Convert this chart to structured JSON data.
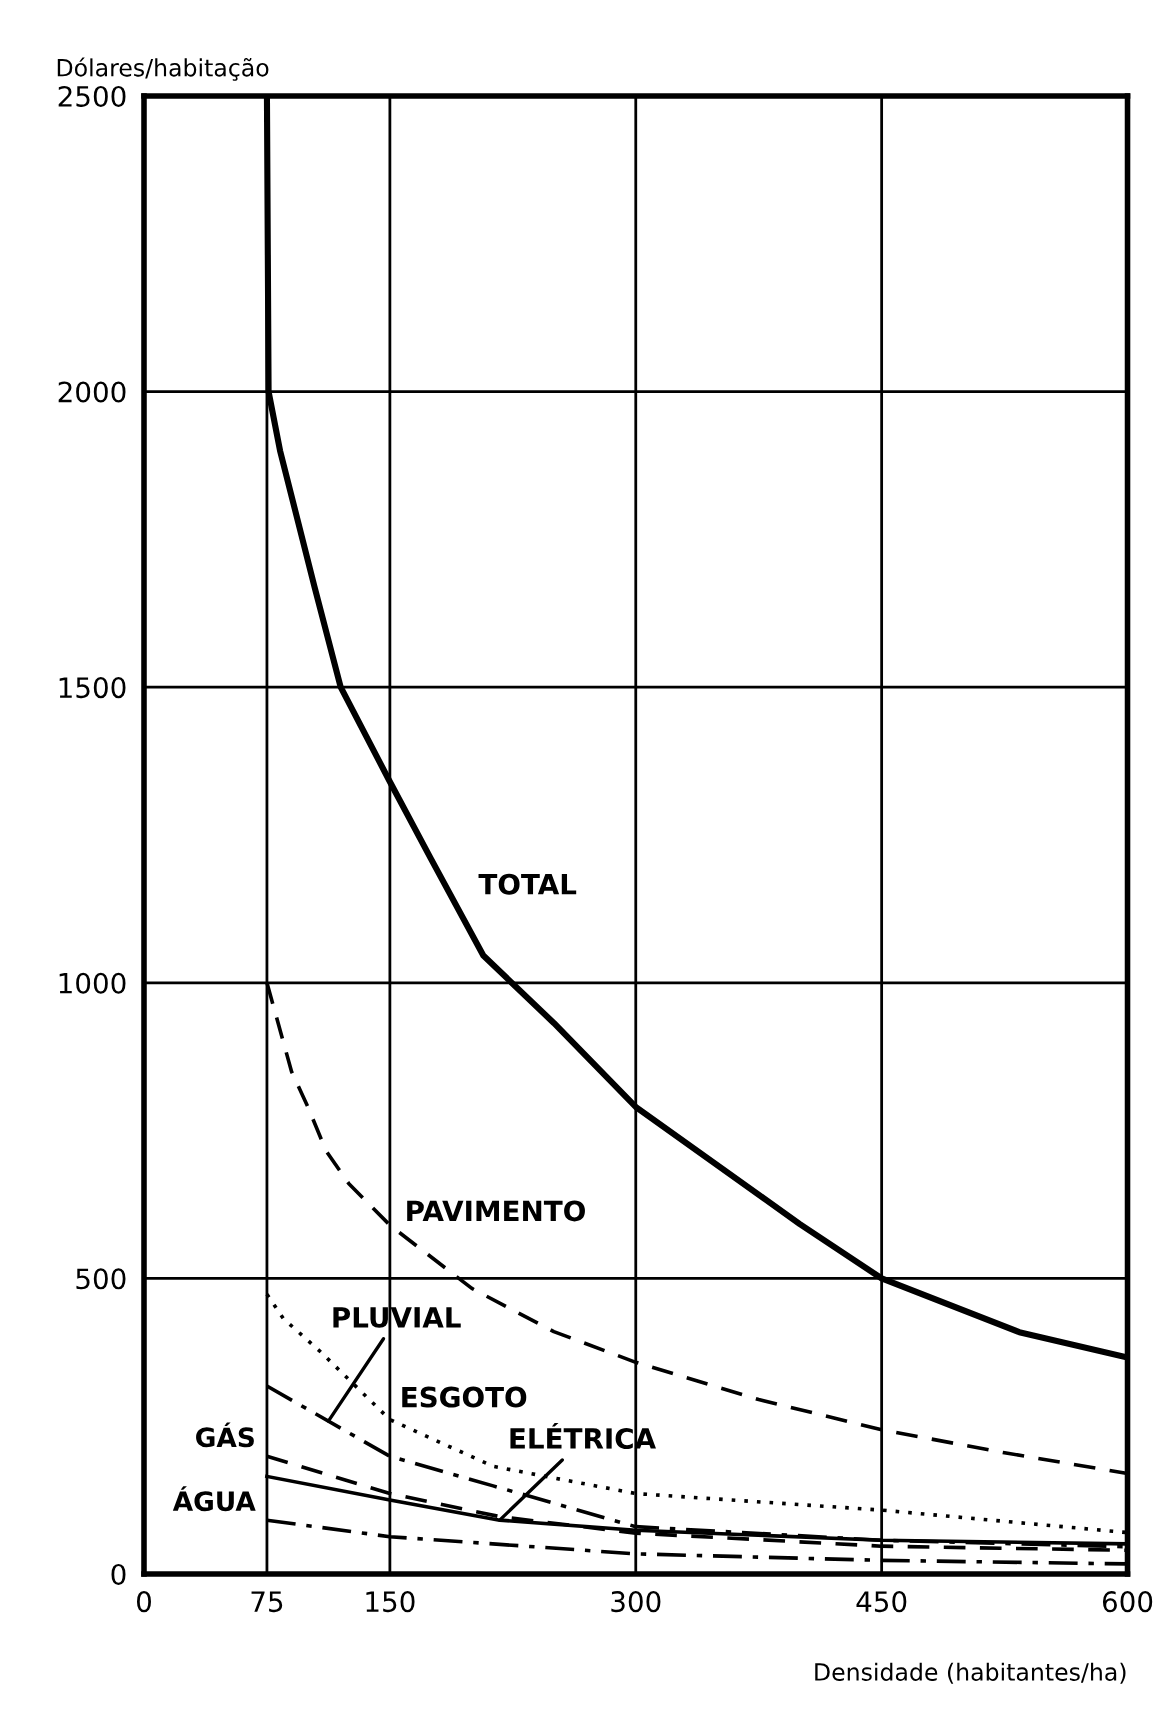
{
  "chart_data": {
    "type": "line",
    "ylabel": "Dólares/habitação",
    "xlabel": "Densidade (habitantes/ha)",
    "xlim": [
      0,
      600
    ],
    "xticks": [
      0,
      75,
      150,
      300,
      450,
      600
    ],
    "ylim": [
      0,
      2500
    ],
    "yticks": [
      0,
      500,
      1000,
      1500,
      2000,
      2500
    ],
    "grid": true,
    "legend": false,
    "series": [
      {
        "name": "TOTAL",
        "color": "#000000",
        "line_style": "solid",
        "x": [
          75,
          76,
          83,
          104,
          120,
          150,
          175,
          207,
          250,
          300,
          400,
          450,
          534,
          600
        ],
        "values": [
          2500,
          2000,
          1900,
          1670,
          1500,
          1340,
          1210,
          1046,
          932,
          790,
          592,
          500,
          409,
          366
        ]
      },
      {
        "name": "PAVIMENTO",
        "color": "#000000",
        "line_style": "dashed",
        "x": [
          75,
          90,
          100,
          111,
          125,
          150,
          200,
          250,
          300,
          375,
          450,
          525,
          600
        ],
        "values": [
          1000,
          850,
          790,
          716,
          660,
          590,
          483,
          410,
          358,
          295,
          244,
          205,
          170
        ]
      },
      {
        "name": "ESGOTO",
        "color": "#000000",
        "line_style": "dotted",
        "x": [
          75,
          85,
          108,
          150,
          213,
          300,
          450,
          600
        ],
        "values": [
          473,
          432,
          375,
          261,
          182,
          136,
          108,
          70
        ]
      },
      {
        "name": "PLUVIAL",
        "color": "#000000",
        "line_style": "dashdot",
        "x": [
          75,
          150,
          213,
          300,
          450,
          600
        ],
        "values": [
          318,
          199,
          149,
          80,
          57,
          46
        ]
      },
      {
        "name": "GÁS",
        "color": "#000000",
        "line_style": "dashed",
        "x": [
          75,
          150,
          217,
          300,
          450,
          600
        ],
        "values": [
          199,
          136,
          97,
          69,
          47,
          40
        ]
      },
      {
        "name": "ELÉTRICA",
        "color": "#000000",
        "line_style": "solid",
        "x": [
          75,
          150,
          217,
          300,
          450,
          600
        ],
        "values": [
          165,
          125,
          91,
          74,
          57,
          51
        ]
      },
      {
        "name": "ÁGUA",
        "color": "#000000",
        "line_style": "dashdot",
        "x": [
          75,
          150,
          300,
          450,
          600
        ],
        "values": [
          91,
          63,
          34,
          23,
          17
        ]
      }
    ]
  }
}
